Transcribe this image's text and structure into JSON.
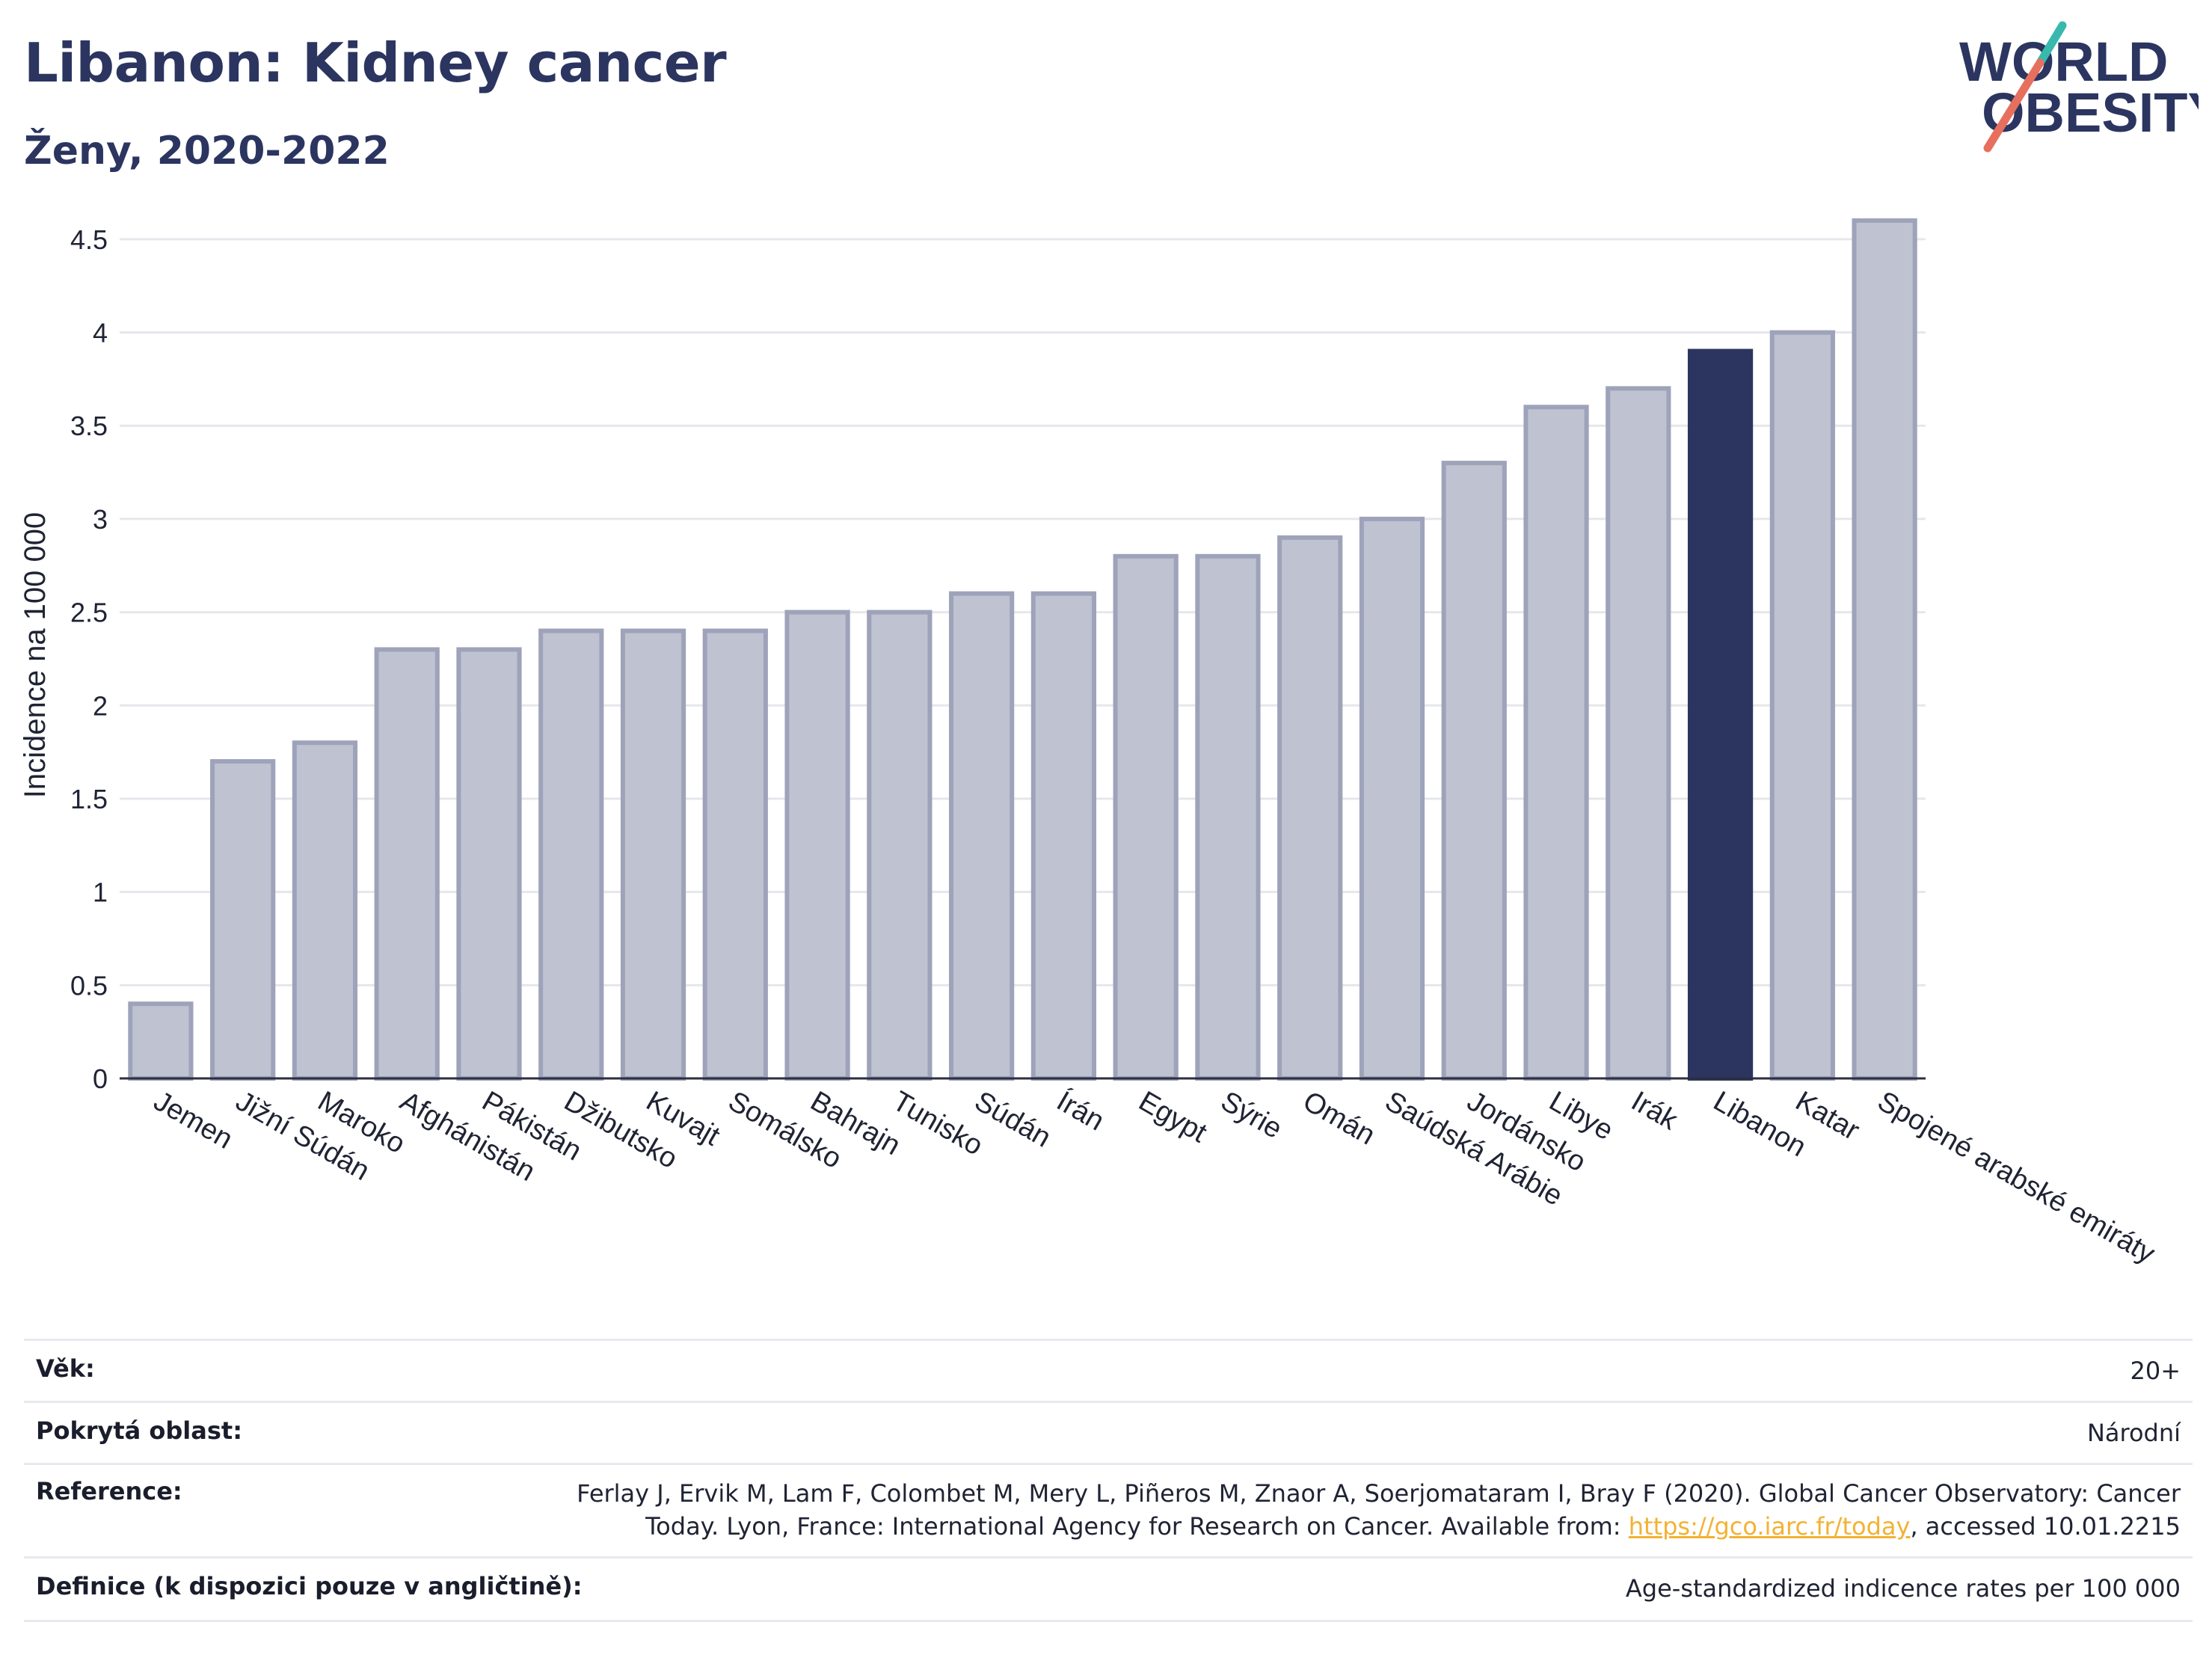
{
  "header": {
    "title": "Libanon: Kidney cancer",
    "subtitle": "Ženy, 2020-2022",
    "logo_text_line1": "WORLD",
    "logo_text_line2": "OBESITY"
  },
  "colors": {
    "highlight": "#2b3560",
    "bar": "#bfc2d0",
    "bar_border": "#9ea3ba",
    "title": "#2b3560",
    "link": "#f2b233",
    "logo_teal": "#39b8ae",
    "logo_coral": "#e76f5e"
  },
  "chart_data": {
    "type": "bar",
    "title": "Libanon: Kidney cancer",
    "subtitle": "Ženy, 2020-2022",
    "xlabel": "",
    "ylabel": "Incidence na 100 000",
    "ylim": [
      0,
      4.7
    ],
    "yticks": [
      0,
      0.5,
      1,
      1.5,
      2,
      2.5,
      3,
      3.5,
      4,
      4.5
    ],
    "ytick_labels": [
      "0",
      "0.5",
      "1",
      "1.5",
      "2",
      "2.5",
      "3",
      "3.5",
      "4",
      "4.5"
    ],
    "grid": true,
    "highlight": "Libanon",
    "categories": [
      "Jemen",
      "Jižní Súdán",
      "Maroko",
      "Afghánistán",
      "Pákistán",
      "Džibutsko",
      "Kuvajt",
      "Somálsko",
      "Bahrajn",
      "Tunisko",
      "Súdán",
      "Írán",
      "Egypt",
      "Sýrie",
      "Omán",
      "Saúdská Arábie",
      "Jordánsko",
      "Libye",
      "Irák",
      "Libanon",
      "Katar",
      "Spojené arabské emiráty"
    ],
    "values": [
      0.4,
      1.7,
      1.8,
      2.3,
      2.3,
      2.4,
      2.4,
      2.4,
      2.5,
      2.5,
      2.6,
      2.6,
      2.8,
      2.8,
      2.9,
      3.0,
      3.3,
      3.6,
      3.7,
      3.9,
      4.0,
      4.6
    ]
  },
  "info": {
    "age_label": "Věk:",
    "age_value": "20+",
    "coverage_label": "Pokrytá oblast:",
    "coverage_value": "Národní",
    "reference_label": "Reference:",
    "reference_line1": "Ferlay J, Ervik M, Lam F, Colombet M, Mery L, Piñeros M, Znaor A, Soerjomataram I, Bray F (2020). Global Cancer Observatory: Cancer",
    "reference_line2_prefix": "Today. Lyon, France: International Agency for Research on Cancer. Available from: ",
    "reference_link": "https://gco.iarc.fr/today",
    "reference_line2_suffix": ", accessed 10.01.2215",
    "definition_label": "Definice (k dispozici pouze v angličtině):",
    "definition_value": "Age-standardized indicence rates per 100 000"
  }
}
